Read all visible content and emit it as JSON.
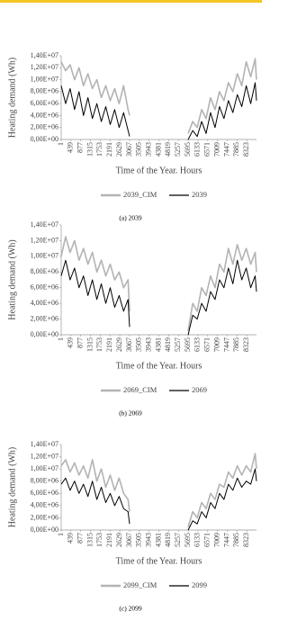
{
  "chart_data": [
    {
      "type": "line",
      "ylabel": "Heating demand (Wh)",
      "xlabel": "Time of the Year. Hours",
      "caption": "(a) 2039",
      "x": [
        1,
        200,
        400,
        600,
        800,
        1000,
        1200,
        1400,
        1600,
        1800,
        2000,
        2200,
        2400,
        2600,
        2800,
        3000,
        3067,
        4381,
        5695,
        5900,
        6100,
        6300,
        6500,
        6700,
        6900,
        7100,
        7300,
        7500,
        7700,
        7900,
        8100,
        8300,
        8500,
        8700,
        8760
      ],
      "xlim": [
        1,
        8760
      ],
      "xticks": [
        1,
        439,
        877,
        1315,
        1753,
        2191,
        2629,
        3067,
        3505,
        3943,
        4381,
        4819,
        5257,
        5695,
        6133,
        6571,
        7009,
        7447,
        7885,
        8323
      ],
      "ylim": [
        0,
        14000000
      ],
      "yticks": [
        {
          "value": 0,
          "label": "0,00E+00"
        },
        {
          "value": 2000000,
          "label": "2,00E+06"
        },
        {
          "value": 4000000,
          "label": "4,00E+06"
        },
        {
          "value": 6000000,
          "label": "6,00E+06"
        },
        {
          "value": 8000000,
          "label": "8,00E+06"
        },
        {
          "value": 10000000,
          "label": "1,00E+07"
        },
        {
          "value": 12000000,
          "label": "1,20E+07"
        },
        {
          "value": 14000000,
          "label": "1,40E+07"
        }
      ],
      "legend": "bottom",
      "series": [
        {
          "name": "2039_CIM",
          "color": "#b3b3b3",
          "values": [
            13000000.0,
            11500000.0,
            12500000.0,
            10000000.0,
            12000000.0,
            9000000.0,
            11000000.0,
            8500000.0,
            10000000.0,
            7000000.0,
            9000000.0,
            6500000.0,
            8500000.0,
            6000000.0,
            9000000.0,
            5000000.0,
            4000000.0,
            null,
            1000000.0,
            3000000.0,
            2000000.0,
            5000000.0,
            3500000.0,
            7000000.0,
            5000000.0,
            8000000.0,
            6500000.0,
            9500000.0,
            8000000.0,
            11000000.0,
            9000000.0,
            13000000.0,
            10500000.0,
            13500000.0,
            10000000.0
          ]
        },
        {
          "name": "2039",
          "color": "#000000",
          "values": [
            9000000.0,
            6000000.0,
            8500000.0,
            5000000.0,
            8000000.0,
            4000000.0,
            7000000.0,
            3500000.0,
            6000000.0,
            3000000.0,
            5500000.0,
            2500000.0,
            5000000.0,
            2000000.0,
            4500000.0,
            1500000.0,
            500000.0,
            null,
            0,
            1500000.0,
            500000.0,
            3000000.0,
            1000000.0,
            4500000.0,
            2000000.0,
            5500000.0,
            3500000.0,
            6500000.0,
            4500000.0,
            7500000.0,
            5500000.0,
            9000000.0,
            6000000.0,
            9500000.0,
            6500000.0
          ]
        }
      ]
    },
    {
      "type": "line",
      "ylabel": "Heating demand (Wh)",
      "xlabel": "Time of the Year. Hours",
      "caption": "(b) 2069",
      "x": [
        1,
        200,
        400,
        600,
        800,
        1000,
        1200,
        1400,
        1600,
        1800,
        2000,
        2200,
        2400,
        2600,
        2800,
        3000,
        3067,
        4381,
        5695,
        5900,
        6100,
        6300,
        6500,
        6700,
        6900,
        7100,
        7300,
        7500,
        7700,
        7900,
        8100,
        8300,
        8500,
        8700,
        8760
      ],
      "xlim": [
        1,
        8760
      ],
      "xticks": [
        1,
        439,
        877,
        1315,
        1753,
        2191,
        2629,
        3067,
        3505,
        3943,
        4381,
        4819,
        5257,
        5695,
        6133,
        6571,
        7009,
        7447,
        7885,
        8323
      ],
      "ylim": [
        0,
        14000000
      ],
      "yticks": [
        {
          "value": 0,
          "label": "0,00E+00"
        },
        {
          "value": 2000000,
          "label": "2,00E+06"
        },
        {
          "value": 4000000,
          "label": "4,00E+06"
        },
        {
          "value": 6000000,
          "label": "6,00E+06"
        },
        {
          "value": 8000000,
          "label": "8,00E+06"
        },
        {
          "value": 10000000,
          "label": "1,00E+07"
        },
        {
          "value": 12000000,
          "label": "1,20E+07"
        },
        {
          "value": 14000000,
          "label": "1,40E+07"
        }
      ],
      "legend": "bottom",
      "series": [
        {
          "name": "2069_CIM",
          "color": "#b3b3b3",
          "values": [
            10000000.0,
            12500000.0,
            10500000.0,
            12000000.0,
            9500000.0,
            11000000.0,
            9000000.0,
            10500000.0,
            8000000.0,
            9500000.0,
            7500000.0,
            9000000.0,
            7000000.0,
            8000000.0,
            6000000.0,
            7000000.0,
            3000000.0,
            null,
            500000.0,
            4000000.0,
            3000000.0,
            6000000.0,
            5000000.0,
            7500000.0,
            6000000.0,
            9000000.0,
            8000000.0,
            11000000.0,
            9000000.0,
            11500000.0,
            9500000.0,
            11000000.0,
            9000000.0,
            10500000.0,
            8000000.0
          ]
        },
        {
          "name": "2069",
          "color": "#000000",
          "values": [
            7500000.0,
            9500000.0,
            7000000.0,
            8500000.0,
            6000000.0,
            7500000.0,
            5000000.0,
            7000000.0,
            4500000.0,
            6500000.0,
            4000000.0,
            6000000.0,
            3500000.0,
            5000000.0,
            3000000.0,
            4500000.0,
            1000000.0,
            null,
            0,
            2500000.0,
            2000000.0,
            4000000.0,
            3000000.0,
            5500000.0,
            4500000.0,
            7000000.0,
            6000000.0,
            8500000.0,
            6500000.0,
            9500000.0,
            7000000.0,
            8500000.0,
            6000000.0,
            7500000.0,
            5500000.0
          ]
        }
      ]
    },
    {
      "type": "line",
      "ylabel": "Heating demand (Wh)",
      "xlabel": "Time of the Year. Hours",
      "caption": "(c) 2099",
      "x": [
        1,
        200,
        400,
        600,
        800,
        1000,
        1200,
        1400,
        1600,
        1800,
        2000,
        2200,
        2400,
        2600,
        2800,
        3000,
        3067,
        4381,
        5695,
        5900,
        6100,
        6300,
        6500,
        6700,
        6900,
        7100,
        7300,
        7500,
        7700,
        7900,
        8100,
        8300,
        8500,
        8700,
        8760
      ],
      "xlim": [
        1,
        8760
      ],
      "xticks": [
        1,
        439,
        877,
        1315,
        1753,
        2191,
        2629,
        3067,
        3505,
        3943,
        4381,
        4819,
        5257,
        5695,
        6133,
        6571,
        7009,
        7447,
        7885,
        8323
      ],
      "ylim": [
        0,
        14000000
      ],
      "yticks": [
        {
          "value": 0,
          "label": "0,00E+00"
        },
        {
          "value": 2000000,
          "label": "2,00E+06"
        },
        {
          "value": 4000000,
          "label": "4,00E+06"
        },
        {
          "value": 6000000,
          "label": "6,00E+06"
        },
        {
          "value": 8000000,
          "label": "8,00E+06"
        },
        {
          "value": 10000000,
          "label": "1,00E+07"
        },
        {
          "value": 12000000,
          "label": "1,20E+07"
        },
        {
          "value": 14000000,
          "label": "1,40E+07"
        }
      ],
      "legend": "bottom",
      "series": [
        {
          "name": "2099_CIM",
          "color": "#b3b3b3",
          "values": [
            10500000.0,
            11500000.0,
            9500000.0,
            11000000.0,
            9000000.0,
            10500000.0,
            8500000.0,
            11500000.0,
            8000000.0,
            10000000.0,
            7000000.0,
            9000000.0,
            6500000.0,
            8500000.0,
            6000000.0,
            5000000.0,
            3000000.0,
            null,
            500000.0,
            3000000.0,
            2000000.0,
            4500000.0,
            3500000.0,
            6000000.0,
            5000000.0,
            7500000.0,
            7000000.0,
            9500000.0,
            8500000.0,
            10500000.0,
            9000000.0,
            10500000.0,
            9500000.0,
            12500000.0,
            10000000.0
          ]
        },
        {
          "name": "2099",
          "color": "#000000",
          "values": [
            7500000.0,
            8500000.0,
            6500000.0,
            8000000.0,
            6000000.0,
            7500000.0,
            5500000.0,
            8000000.0,
            5000000.0,
            7000000.0,
            4500000.0,
            6000000.0,
            4000000.0,
            5500000.0,
            3500000.0,
            3000000.0,
            1000000.0,
            null,
            0,
            1500000.0,
            1000000.0,
            3000000.0,
            2000000.0,
            4500000.0,
            3500000.0,
            6000000.0,
            5000000.0,
            7500000.0,
            6500000.0,
            8500000.0,
            7000000.0,
            8000000.0,
            7500000.0,
            10000000.0,
            8000000.0
          ]
        }
      ]
    }
  ]
}
